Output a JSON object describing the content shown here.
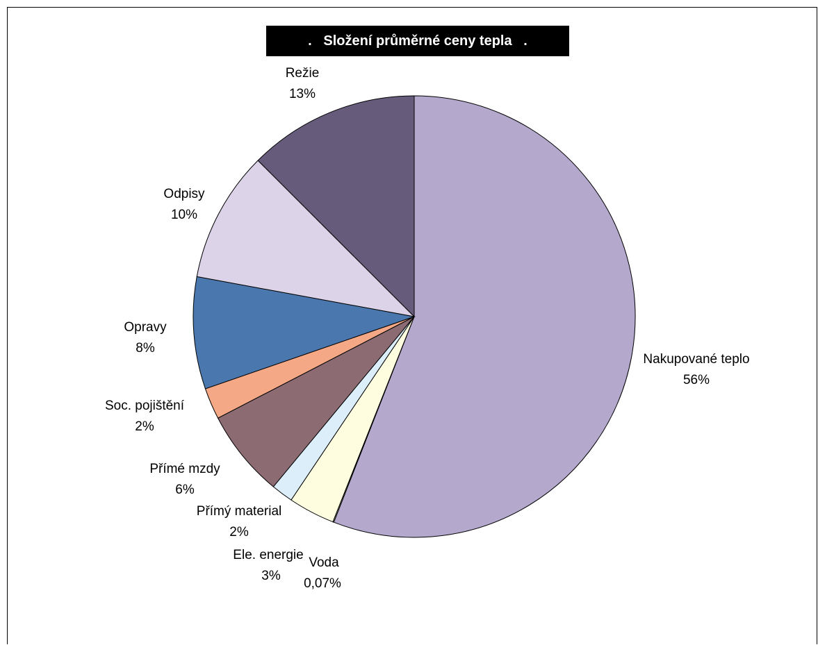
{
  "chart_data": {
    "type": "pie",
    "title": ".   Složení průměrné ceny tepla   .",
    "slices": [
      {
        "label": "Nakupované teplo",
        "value_label": "56%",
        "value": 55.93,
        "color": "#B4A8CC"
      },
      {
        "label": "Voda",
        "value_label": "0,07%",
        "value": 0.07,
        "color": "#FFFFCC"
      },
      {
        "label": "Ele. energie",
        "value_label": "3%",
        "value": 3.4,
        "color": "#FFFDE0"
      },
      {
        "label": "Přímý material",
        "value_label": "2%",
        "value": 1.6,
        "color": "#DDEEFB"
      },
      {
        "label": "Přímé mzdy",
        "value_label": "6%",
        "value": 6.4,
        "color": "#8C6B73"
      },
      {
        "label": "Soc. pojištění",
        "value_label": "2%",
        "value": 2.3,
        "color": "#F4A885"
      },
      {
        "label": "Opravy",
        "value_label": "8%",
        "value": 8.2,
        "color": "#4A77AE"
      },
      {
        "label": "Odpisy",
        "value_label": "10%",
        "value": 9.6,
        "color": "#DCD3E8"
      },
      {
        "label": "Režie",
        "value_label": "13%",
        "value": 12.5,
        "color": "#675B7B"
      }
    ]
  }
}
